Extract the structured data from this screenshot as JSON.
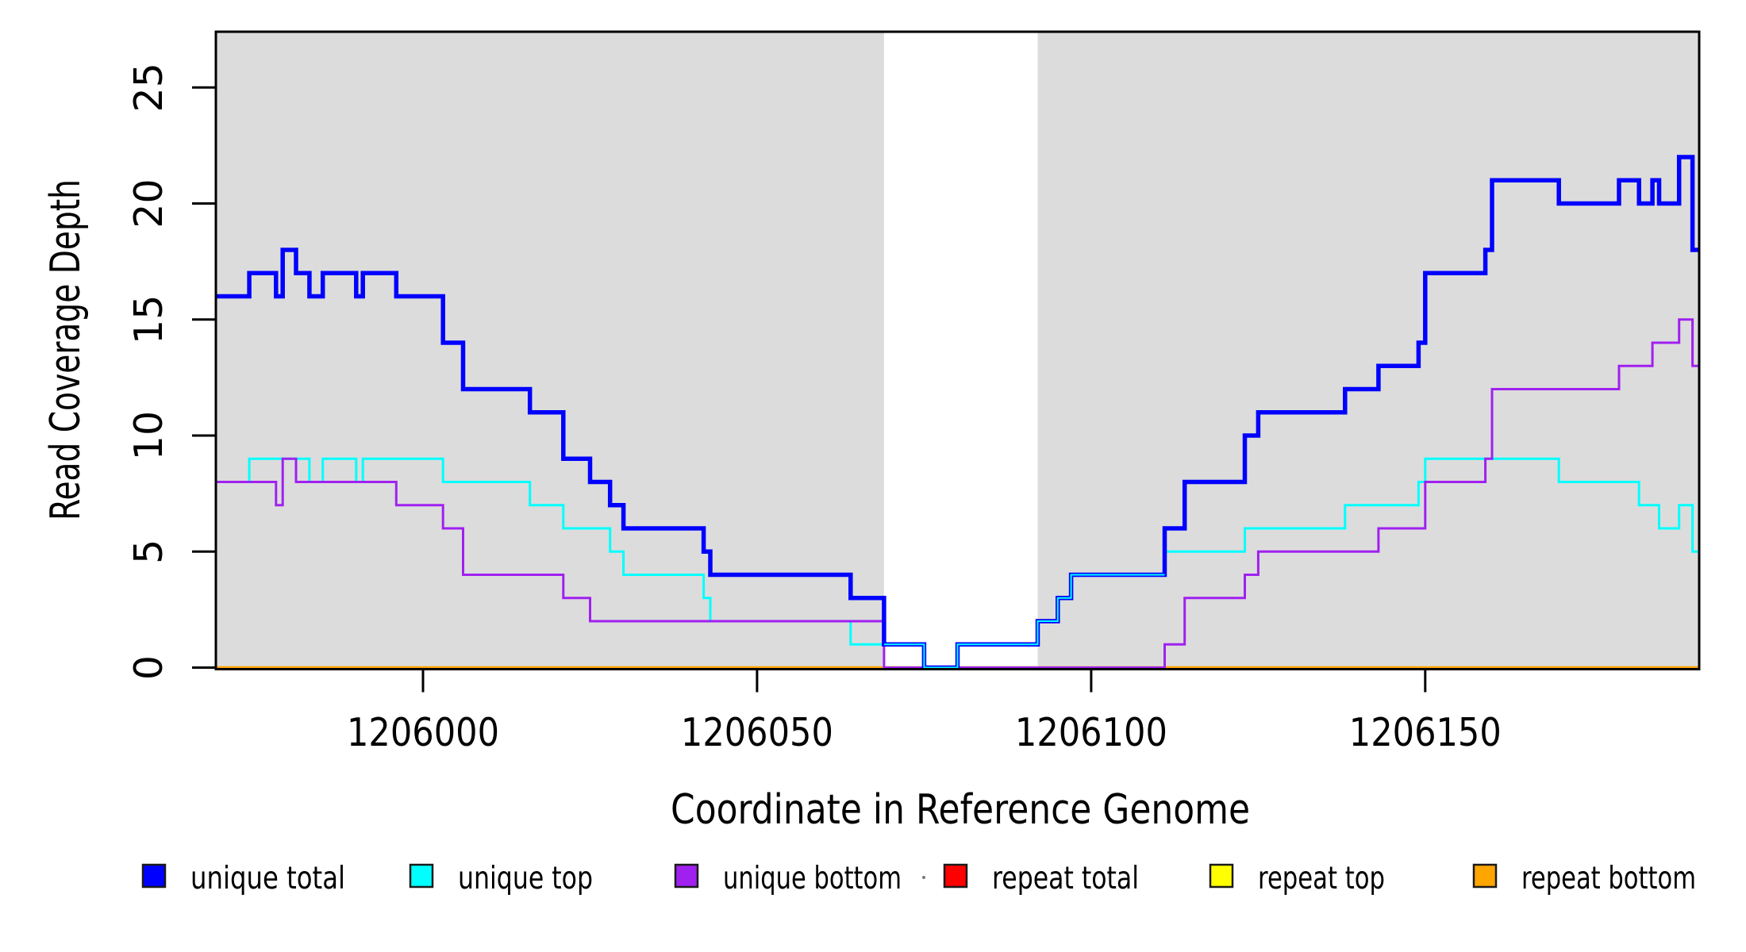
{
  "chart_data": {
    "type": "line",
    "subtype": "step-coverage-plot",
    "title": "",
    "xlabel": "Coordinate in Reference Genome",
    "ylabel": "Read Coverage Depth",
    "xlim": [
      1205969,
      1206191
    ],
    "ylim": [
      0,
      27.4
    ],
    "x_ticks": [
      1206000,
      1206050,
      1206100,
      1206150
    ],
    "y_ticks": [
      0,
      5,
      10,
      15,
      20,
      25
    ],
    "grid": false,
    "shade_color": "#dcdcdc",
    "shaded_regions": [
      [
        1205969,
        1206069
      ],
      [
        1206092,
        1206191
      ]
    ],
    "unshaded_gap": [
      1206069,
      1206092
    ],
    "series": [
      {
        "name": "repeat total",
        "color": "#ff0000",
        "width": 2.5,
        "points": [
          [
            1205969,
            0
          ]
        ]
      },
      {
        "name": "repeat top",
        "color": "#ffff00",
        "width": 2.5,
        "points": [
          [
            1205969,
            0
          ]
        ]
      },
      {
        "name": "repeat bottom",
        "color": "#ffa500",
        "width": 3.5,
        "points": [
          [
            1205969,
            0
          ]
        ]
      },
      {
        "name": "unique top",
        "color": "#00ffff",
        "width": 3,
        "points": [
          [
            1205969,
            8
          ],
          [
            1205974,
            9
          ],
          [
            1205983,
            8
          ],
          [
            1205985,
            9
          ],
          [
            1205990,
            8
          ],
          [
            1205991,
            9
          ],
          [
            1206003,
            8
          ],
          [
            1206016,
            7
          ],
          [
            1206021,
            6
          ],
          [
            1206028,
            5
          ],
          [
            1206030,
            4
          ],
          [
            1206042,
            3
          ],
          [
            1206043,
            2
          ],
          [
            1206064,
            1
          ],
          [
            1206075,
            0
          ],
          [
            1206080,
            1
          ],
          [
            1206092,
            2
          ],
          [
            1206095,
            3
          ],
          [
            1206097,
            4
          ],
          [
            1206111,
            5
          ],
          [
            1206123,
            6
          ],
          [
            1206138,
            7
          ],
          [
            1206149,
            8
          ],
          [
            1206150,
            9
          ],
          [
            1206170,
            8
          ],
          [
            1206182,
            7
          ],
          [
            1206185,
            6
          ],
          [
            1206188,
            7
          ],
          [
            1206190,
            5
          ]
        ]
      },
      {
        "name": "unique bottom",
        "color": "#a020f0",
        "width": 3,
        "points": [
          [
            1205969,
            8
          ],
          [
            1205978,
            7
          ],
          [
            1205979,
            9
          ],
          [
            1205981,
            8
          ],
          [
            1205996,
            7
          ],
          [
            1206003,
            6
          ],
          [
            1206006,
            4
          ],
          [
            1206021,
            3
          ],
          [
            1206025,
            2
          ],
          [
            1206069,
            0
          ],
          [
            1206111,
            1
          ],
          [
            1206114,
            3
          ],
          [
            1206123,
            4
          ],
          [
            1206125,
            5
          ],
          [
            1206143,
            6
          ],
          [
            1206150,
            8
          ],
          [
            1206159,
            9
          ],
          [
            1206160,
            12
          ],
          [
            1206179,
            13
          ],
          [
            1206184,
            14
          ],
          [
            1206188,
            15
          ],
          [
            1206190,
            13
          ]
        ]
      },
      {
        "name": "unique total",
        "color": "#0000ff",
        "width": 5.5,
        "points": [
          [
            1205969,
            16
          ],
          [
            1205974,
            17
          ],
          [
            1205978,
            16
          ],
          [
            1205979,
            18
          ],
          [
            1205981,
            17
          ],
          [
            1205983,
            16
          ],
          [
            1205985,
            17
          ],
          [
            1205990,
            16
          ],
          [
            1205991,
            17
          ],
          [
            1205996,
            16
          ],
          [
            1206003,
            14
          ],
          [
            1206006,
            12
          ],
          [
            1206016,
            11
          ],
          [
            1206021,
            9
          ],
          [
            1206025,
            8
          ],
          [
            1206028,
            7
          ],
          [
            1206030,
            6
          ],
          [
            1206042,
            5
          ],
          [
            1206043,
            4
          ],
          [
            1206064,
            3
          ],
          [
            1206069,
            1
          ],
          [
            1206075,
            0
          ],
          [
            1206080,
            1
          ],
          [
            1206092,
            2
          ],
          [
            1206095,
            3
          ],
          [
            1206097,
            4
          ],
          [
            1206111,
            6
          ],
          [
            1206114,
            8
          ],
          [
            1206123,
            10
          ],
          [
            1206125,
            11
          ],
          [
            1206138,
            12
          ],
          [
            1206143,
            13
          ],
          [
            1206149,
            14
          ],
          [
            1206150,
            17
          ],
          [
            1206159,
            18
          ],
          [
            1206160,
            21
          ],
          [
            1206170,
            20
          ],
          [
            1206179,
            21
          ],
          [
            1206182,
            20
          ],
          [
            1206184,
            21
          ],
          [
            1206185,
            20
          ],
          [
            1206188,
            22
          ],
          [
            1206190,
            18
          ]
        ]
      }
    ],
    "legend": [
      {
        "label": "unique total",
        "color": "#0000ff"
      },
      {
        "label": "unique top",
        "color": "#00ffff"
      },
      {
        "label": "unique bottom",
        "color": "#a020f0"
      },
      {
        "label": "repeat total",
        "color": "#ff0000"
      },
      {
        "label": "repeat top",
        "color": "#ffff00"
      },
      {
        "label": "repeat bottom",
        "color": "#ffa500"
      }
    ],
    "legend_position": "bottom",
    "axis_color": "#000000",
    "plot_bg": "#ffffff"
  }
}
